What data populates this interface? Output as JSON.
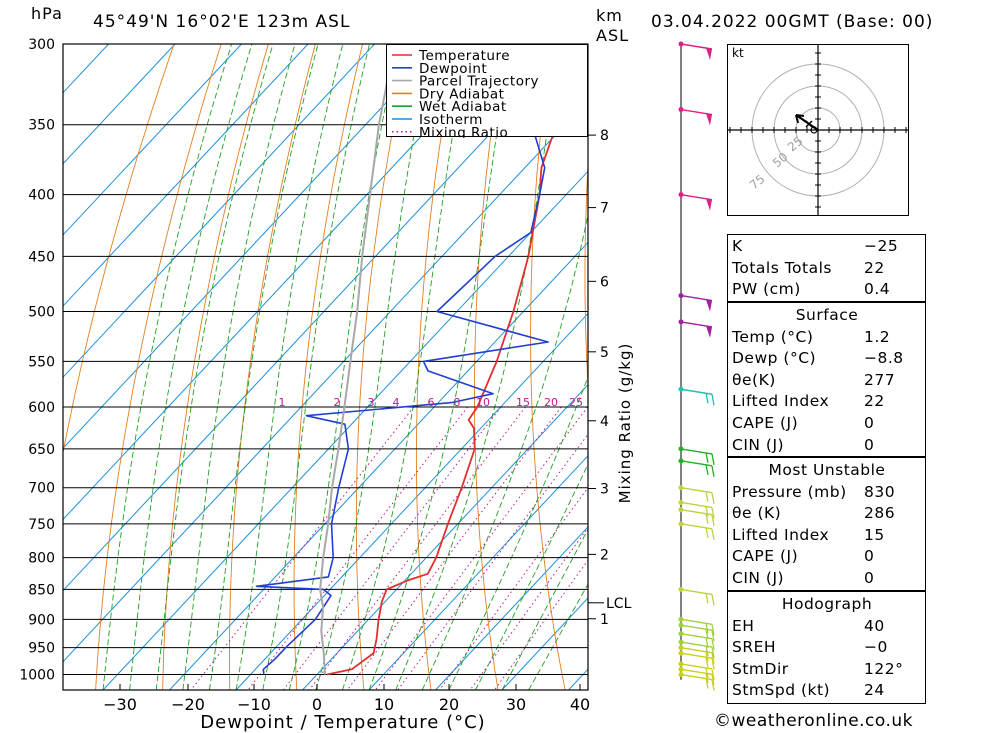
{
  "header": {
    "unit_hpa": "hPa",
    "location": "45°49'N 16°02'E 123m ASL",
    "unit_km": "km",
    "unit_asl": "ASL",
    "datetime": "03.04.2022 00GMT (Base: 00)"
  },
  "chart_data": {
    "type": "skew-t",
    "xlabel": "Dewpoint / Temperature (°C)",
    "ylabel_right": "Mixing Ratio (g/kg)",
    "pressure_levels": [
      300,
      350,
      400,
      450,
      500,
      550,
      600,
      650,
      700,
      750,
      800,
      850,
      900,
      950,
      1000
    ],
    "pressure_labels": [
      "300",
      "350",
      "400",
      "450",
      "500",
      "550",
      "600",
      "650",
      "700",
      "750",
      "800",
      "850",
      "900",
      "950",
      "1000"
    ],
    "temperature_ticks": [
      -30,
      -20,
      -10,
      0,
      10,
      20,
      30,
      40
    ],
    "temperature_tick_labels": [
      "−30",
      "−20",
      "−10",
      "0",
      "10",
      "20",
      "30",
      "40"
    ],
    "xlim": [
      -38,
      41
    ],
    "ylim_hpa": [
      1030,
      300
    ],
    "km_ticks": [
      {
        "km": 8,
        "label": "8"
      },
      {
        "km": 7,
        "label": "7"
      },
      {
        "km": 6,
        "label": "6"
      },
      {
        "km": 5,
        "label": "5"
      },
      {
        "km": 4,
        "label": "4"
      },
      {
        "km": 3,
        "label": "3"
      },
      {
        "km": 2,
        "label": "2"
      },
      {
        "km": 1,
        "label": "1"
      }
    ],
    "lcl_label": "LCL",
    "mixing_ratio_labels": [
      "1",
      "2",
      "3",
      "4",
      "6",
      "8",
      "10",
      "15",
      "20",
      "25"
    ],
    "legend": [
      {
        "label": "Temperature",
        "color": "#e03030"
      },
      {
        "label": "Dewpoint",
        "color": "#2040d0"
      },
      {
        "label": "Parcel Trajectory",
        "color": "#a8a8a8"
      },
      {
        "label": "Dry Adiabat",
        "color": "#e08020"
      },
      {
        "label": "Wet Adiabat",
        "color": "#20a020"
      },
      {
        "label": "Isotherm",
        "color": "#1a90e0"
      },
      {
        "label": "Mixing Ratio",
        "color": "#c01890"
      }
    ],
    "series": [
      {
        "name": "Temperature",
        "color": "#e03030",
        "points": [
          [
            1000,
            1.5
          ],
          [
            990,
            4.5
          ],
          [
            960,
            5.5
          ],
          [
            935,
            4.0
          ],
          [
            900,
            1.5
          ],
          [
            870,
            -0.5
          ],
          [
            850,
            -1.5
          ],
          [
            835,
            0.5
          ],
          [
            825,
            2.5
          ],
          [
            800,
            1.5
          ],
          [
            750,
            -1.5
          ],
          [
            700,
            -4.5
          ],
          [
            650,
            -8
          ],
          [
            625,
            -11
          ],
          [
            615,
            -13
          ],
          [
            600,
            -13.5
          ],
          [
            550,
            -17
          ],
          [
            500,
            -21.5
          ],
          [
            450,
            -27
          ],
          [
            400,
            -34
          ],
          [
            380,
            -37.5
          ],
          [
            360,
            -40
          ],
          [
            350,
            -41
          ],
          [
            320,
            -46
          ],
          [
            300,
            -49.5
          ]
        ]
      },
      {
        "name": "Dewpoint",
        "color": "#2040d0",
        "points": [
          [
            1000,
            -8
          ],
          [
            990,
            -8.8
          ],
          [
            970,
            -8.5
          ],
          [
            950,
            -8.5
          ],
          [
            900,
            -8
          ],
          [
            860,
            -9
          ],
          [
            850,
            -11
          ],
          [
            845,
            -21.5
          ],
          [
            830,
            -12
          ],
          [
            800,
            -14
          ],
          [
            750,
            -19
          ],
          [
            700,
            -23
          ],
          [
            650,
            -27
          ],
          [
            620,
            -31
          ],
          [
            610,
            -38
          ],
          [
            595,
            -18
          ],
          [
            585,
            -13
          ],
          [
            560,
            -26
          ],
          [
            550,
            -28
          ],
          [
            530,
            -12
          ],
          [
            500,
            -33
          ],
          [
            450,
            -32
          ],
          [
            430,
            -30
          ],
          [
            400,
            -34
          ],
          [
            380,
            -37
          ],
          [
            350,
            -45
          ],
          [
            330,
            -48
          ],
          [
            315,
            -44
          ],
          [
            300,
            -49
          ]
        ]
      },
      {
        "name": "Parcel Trajectory",
        "color": "#a8a8a8",
        "points": [
          [
            1000,
            1.2
          ],
          [
            960,
            -2
          ],
          [
            920,
            -5.5
          ],
          [
            880,
            -8.5
          ],
          [
            850,
            -11.5
          ],
          [
            800,
            -15.5
          ],
          [
            750,
            -19.5
          ],
          [
            700,
            -24
          ],
          [
            650,
            -28.5
          ],
          [
            600,
            -33.5
          ],
          [
            550,
            -39
          ],
          [
            500,
            -45
          ],
          [
            450,
            -52
          ],
          [
            400,
            -59.5
          ],
          [
            350,
            -68
          ],
          [
            300,
            -77
          ]
        ]
      }
    ],
    "wind_barbs_hpa": [
      1000,
      990,
      980,
      960,
      950,
      940,
      925,
      910,
      900,
      850,
      750,
      730,
      720,
      700,
      665,
      650,
      580,
      510,
      485,
      400,
      340,
      300
    ]
  },
  "hodograph": {
    "unit": "kt",
    "ring_labels": [
      "25",
      "50",
      "75"
    ]
  },
  "indices": {
    "rows": [
      {
        "label": "K",
        "value": "−25"
      },
      {
        "label": "Totals Totals",
        "value": "22"
      },
      {
        "label": "PW (cm)",
        "value": "0.4"
      }
    ]
  },
  "surface": {
    "title": "Surface",
    "rows": [
      {
        "label": "Temp (°C)",
        "value": "1.2"
      },
      {
        "label": "Dewp (°C)",
        "value": "−8.8"
      },
      {
        "label": "θe(K)",
        "value": "277"
      },
      {
        "label": "Lifted Index",
        "value": "22"
      },
      {
        "label": "CAPE (J)",
        "value": "0"
      },
      {
        "label": "CIN (J)",
        "value": "0"
      }
    ]
  },
  "most_unstable": {
    "title": "Most Unstable",
    "rows": [
      {
        "label": "Pressure (mb)",
        "value": "830"
      },
      {
        "label": "θe (K)",
        "value": "286"
      },
      {
        "label": "Lifted Index",
        "value": "15"
      },
      {
        "label": "CAPE (J)",
        "value": "0"
      },
      {
        "label": "CIN (J)",
        "value": "0"
      }
    ]
  },
  "hodograph_table": {
    "title": "Hodograph",
    "rows": [
      {
        "label": "EH",
        "value": "40"
      },
      {
        "label": "SREH",
        "value": "−0"
      },
      {
        "label": "StmDir",
        "value": "122°"
      },
      {
        "label": "StmSpd (kt)",
        "value": "24"
      }
    ]
  },
  "footer": {
    "copyright": "©weatheronline.co.uk"
  }
}
